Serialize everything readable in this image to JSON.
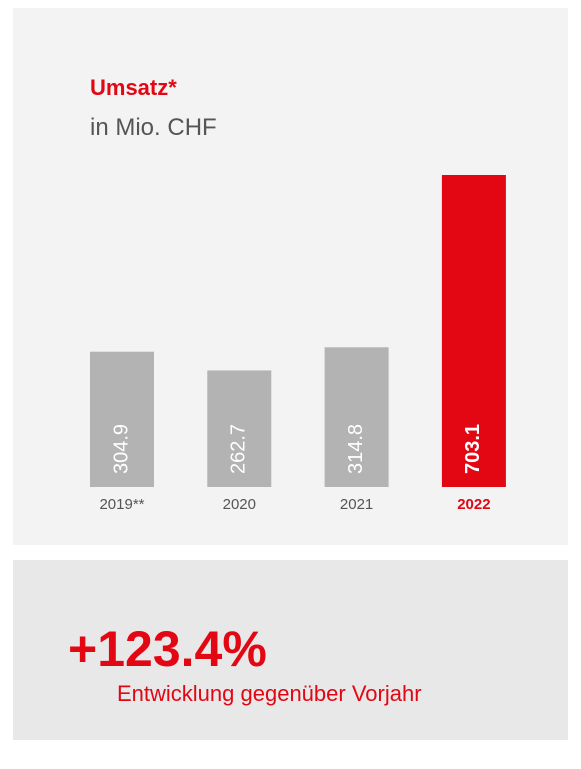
{
  "chart_data": {
    "type": "bar",
    "title": "Umsatz*",
    "subtitle": "in Mio. CHF",
    "categories": [
      "2019**",
      "2020",
      "2021",
      "2022"
    ],
    "values": [
      304.9,
      262.7,
      314.8,
      703.1
    ],
    "colors": [
      "#b3b3b3",
      "#b3b3b3",
      "#b3b3b3",
      "#e30613"
    ],
    "change": "+123.4%",
    "change_label": "Entwicklung gegenüber Vorjahr"
  }
}
